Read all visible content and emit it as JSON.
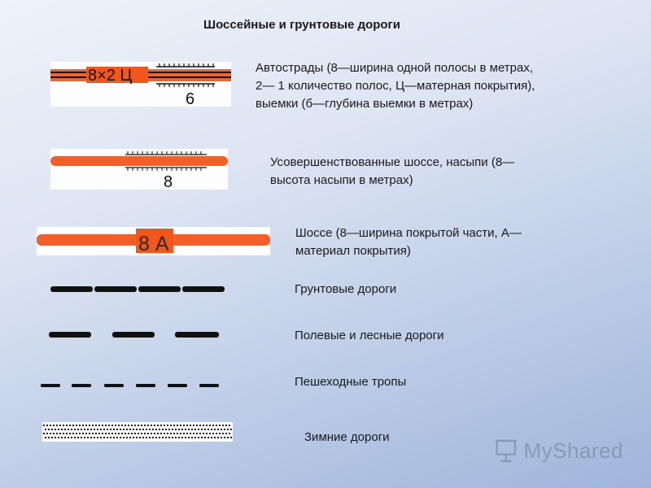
{
  "title": "Шоссейные и грунтовые дороги",
  "legend": [
    {
      "label_line1": "Автострады (8—ширина одной полосы в метрах,",
      "label_line2": "2— 1 количество полос, Ц—матерная покрытия),",
      "label_line3": "выемки (б—глубина выемки в метрах)",
      "swatch_text_top": "8×2 Ц",
      "swatch_text_bottom": "6"
    },
    {
      "label_line1": "Усовершенствованные шоссе, насыпи (8—",
      "label_line2": "высота насыпи в метрах)",
      "swatch_text_bottom": "8"
    },
    {
      "label_line1": "Шоссе (8—ширина покрытой части, А—",
      "label_line2": "материал покрытия)",
      "swatch_text": "8 А"
    },
    {
      "label": "Грунтовые дороги"
    },
    {
      "label": "Полевые и лесные дороги"
    },
    {
      "label": "Пешеходные тропы"
    },
    {
      "label": "Зимние дороги"
    }
  ],
  "logo": {
    "text": "MyShared",
    "icon": "presentation-board-icon"
  },
  "colors": {
    "road_orange": "#f2561a",
    "line_black": "#111111",
    "background_top": "#eef2fa",
    "background_bottom": "#9fb5dc"
  }
}
